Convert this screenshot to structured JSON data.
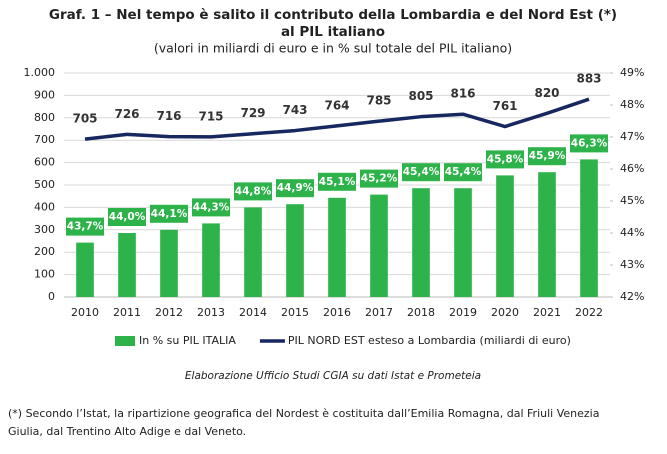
{
  "chart_data": {
    "type": "combo",
    "title": [
      "Graf. 1 – Nel tempo è salito il contributo della Lombardia e del Nord Est (*)",
      "al PIL italiano"
    ],
    "subtitle": "(valori in miliardi di euro e in % sul totale del PIL italiano)",
    "categories": [
      "2010",
      "2011",
      "2012",
      "2013",
      "2014",
      "2015",
      "2016",
      "2017",
      "2018",
      "2019",
      "2020",
      "2021",
      "2022"
    ],
    "series": [
      {
        "name": "In % su PIL ITALIA",
        "type": "bar",
        "axis": "y2",
        "color": "#2db34a",
        "values": [
          43.7,
          44.0,
          44.1,
          44.3,
          44.8,
          44.9,
          45.1,
          45.2,
          45.4,
          45.4,
          45.8,
          45.9,
          46.3
        ],
        "value_labels": [
          "43,7%",
          "44,0%",
          "44,1%",
          "44,3%",
          "44,8%",
          "44,9%",
          "45,1%",
          "45,2%",
          "45,4%",
          "45,4%",
          "45,8%",
          "45,9%",
          "46,3%"
        ]
      },
      {
        "name": "PIL NORD EST esteso a Lombardia (miliardi di euro)",
        "type": "line",
        "color": "#17275f",
        "values": [
          705,
          726,
          716,
          715,
          729,
          743,
          764,
          785,
          805,
          816,
          761,
          820,
          883
        ]
      }
    ],
    "ylim": [
      0,
      1000
    ],
    "yticks": [
      0,
      100,
      200,
      300,
      400,
      500,
      600,
      700,
      800,
      900,
      {
        "value": 1000,
        "label": "1.000"
      }
    ],
    "y2lim": [
      42,
      49
    ],
    "y2ticks": [
      {
        "value": 42,
        "label": "42%"
      },
      {
        "value": 43,
        "label": "43%"
      },
      {
        "value": 44,
        "label": "44%"
      },
      {
        "value": 45,
        "label": "45%"
      },
      {
        "value": 46,
        "label": "46%"
      },
      {
        "value": 47,
        "label": "47%"
      },
      {
        "value": 48,
        "label": "48%"
      },
      {
        "value": 49,
        "label": "49%"
      }
    ],
    "grid": true,
    "legend": "bottom",
    "source": "Elaborazione Ufficio Studi CGIA su dati Istat e Prometeia",
    "footnote": [
      "(*) Secondo l’Istat, la ripartizione geografica del Nordest è costituita dall’Emilia Romagna, dal Friuli Venezia",
      "Giulia, dal Trentino Alto Adige e dal Veneto."
    ]
  }
}
